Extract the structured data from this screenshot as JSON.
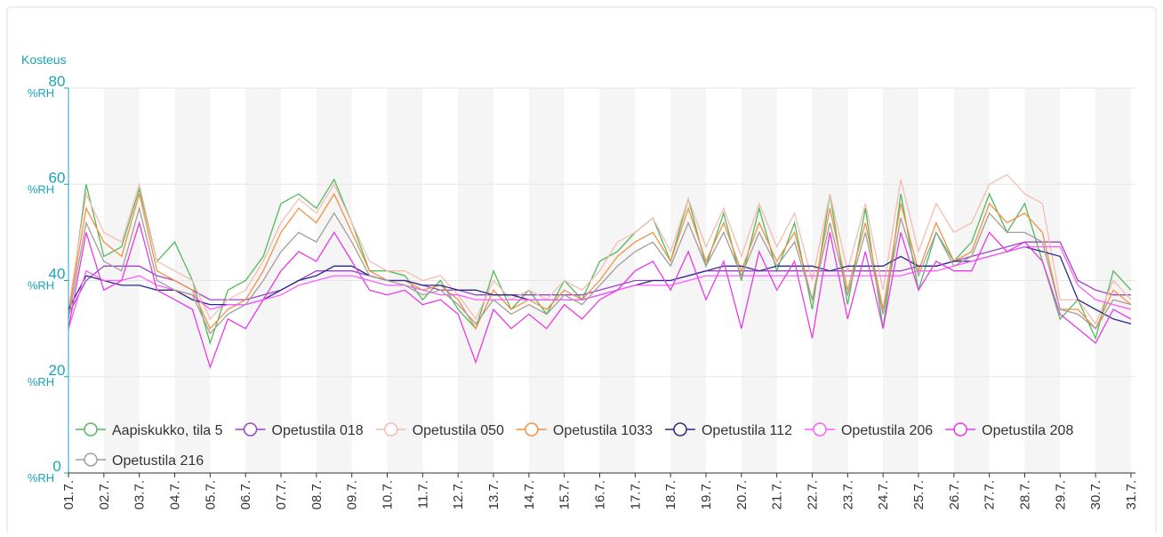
{
  "chart_data": {
    "type": "line",
    "y_axis_label": "Kosteus",
    "y_unit": "%RH",
    "x": [
      1,
      1.5,
      2,
      2.5,
      3,
      3.5,
      4,
      4.5,
      5,
      5.5,
      6,
      6.5,
      7,
      7.5,
      8,
      8.5,
      9,
      9.5,
      10,
      10.5,
      11,
      11.5,
      12,
      12.5,
      13,
      13.5,
      14,
      14.5,
      15,
      15.5,
      16,
      16.5,
      17,
      17.5,
      18,
      18.5,
      19,
      19.5,
      20,
      20.5,
      21,
      21.5,
      22,
      22.5,
      23,
      23.5,
      24,
      24.5,
      25,
      25.5,
      26,
      26.5,
      27,
      27.5,
      28,
      28.5,
      29,
      29.5,
      30,
      30.5,
      31
    ],
    "xlim": [
      1,
      31
    ],
    "xticks": [
      {
        "value": 1,
        "label": "01.7."
      },
      {
        "value": 2,
        "label": "02.7."
      },
      {
        "value": 3,
        "label": "03.7."
      },
      {
        "value": 4,
        "label": "04.7."
      },
      {
        "value": 5,
        "label": "05.7."
      },
      {
        "value": 6,
        "label": "06.7."
      },
      {
        "value": 7,
        "label": "07.7."
      },
      {
        "value": 8,
        "label": "08.7."
      },
      {
        "value": 9,
        "label": "09.7."
      },
      {
        "value": 10,
        "label": "10.7."
      },
      {
        "value": 11,
        "label": "11.7."
      },
      {
        "value": 12,
        "label": "12.7."
      },
      {
        "value": 13,
        "label": "13.7."
      },
      {
        "value": 14,
        "label": "14.7."
      },
      {
        "value": 15,
        "label": "15.7."
      },
      {
        "value": 16,
        "label": "16.7."
      },
      {
        "value": 17,
        "label": "17.7."
      },
      {
        "value": 18,
        "label": "18.7."
      },
      {
        "value": 19,
        "label": "19.7."
      },
      {
        "value": 20,
        "label": "20.7."
      },
      {
        "value": 21,
        "label": "21.7."
      },
      {
        "value": 22,
        "label": "22.7."
      },
      {
        "value": 23,
        "label": "23.7."
      },
      {
        "value": 24,
        "label": "24.7."
      },
      {
        "value": 25,
        "label": "25.7."
      },
      {
        "value": 26,
        "label": "26.7."
      },
      {
        "value": 27,
        "label": "27.7."
      },
      {
        "value": 28,
        "label": "28.7."
      },
      {
        "value": 29,
        "label": "29.7."
      },
      {
        "value": 30,
        "label": "30.7."
      },
      {
        "value": 31,
        "label": "31.7."
      }
    ],
    "ylim": [
      0,
      80
    ],
    "yticks": [
      0,
      20,
      40,
      60,
      80
    ],
    "grid": true,
    "series": [
      {
        "name": "Aapiskukko, tila 5",
        "color": "#55b85a",
        "values": [
          32,
          60,
          45,
          47,
          59,
          44,
          48,
          40,
          27,
          38,
          40,
          45,
          56,
          58,
          55,
          61,
          52,
          42,
          42,
          41,
          36,
          40,
          34,
          30,
          42,
          34,
          38,
          33,
          40,
          36,
          44,
          46,
          50,
          53,
          44,
          57,
          43,
          54,
          40,
          55,
          42,
          52,
          34,
          58,
          35,
          55,
          30,
          58,
          38,
          50,
          44,
          48,
          58,
          50,
          56,
          44,
          32,
          36,
          28,
          42,
          38
        ]
      },
      {
        "name": "Opetustila 018",
        "color": "#9b45c4",
        "values": [
          33,
          40,
          43,
          43,
          43,
          41,
          40,
          38,
          36,
          36,
          36,
          37,
          38,
          40,
          42,
          42,
          42,
          41,
          40,
          40,
          39,
          38,
          38,
          37,
          37,
          37,
          37,
          37,
          37,
          37,
          38,
          39,
          40,
          40,
          40,
          41,
          42,
          42,
          42,
          42,
          42,
          42,
          42,
          42,
          42,
          42,
          42,
          42,
          43,
          43,
          44,
          45,
          46,
          47,
          48,
          48,
          48,
          40,
          38,
          37,
          37
        ]
      },
      {
        "name": "Opetustila 050",
        "color": "#f5bcb4",
        "values": [
          34,
          58,
          50,
          48,
          60,
          44,
          42,
          40,
          32,
          36,
          38,
          44,
          52,
          57,
          54,
          60,
          52,
          44,
          42,
          42,
          40,
          41,
          37,
          32,
          40,
          36,
          38,
          36,
          40,
          38,
          42,
          48,
          50,
          53,
          46,
          57,
          47,
          55,
          45,
          56,
          47,
          54,
          40,
          58,
          42,
          56,
          38,
          61,
          46,
          56,
          50,
          52,
          60,
          62,
          58,
          56,
          36,
          36,
          31,
          40,
          36
        ]
      },
      {
        "name": "Opetustila 1033",
        "color": "#f29248",
        "values": [
          33,
          55,
          48,
          45,
          58,
          42,
          40,
          38,
          30,
          34,
          36,
          42,
          50,
          55,
          52,
          58,
          50,
          42,
          40,
          40,
          38,
          39,
          36,
          30,
          38,
          34,
          36,
          34,
          38,
          36,
          40,
          45,
          48,
          50,
          44,
          55,
          44,
          52,
          42,
          52,
          44,
          50,
          36,
          55,
          38,
          52,
          34,
          56,
          42,
          52,
          44,
          46,
          56,
          52,
          54,
          50,
          34,
          34,
          30,
          38,
          35
        ]
      },
      {
        "name": "Opetustila 112",
        "color": "#2a2a86",
        "values": [
          34,
          41,
          40,
          39,
          39,
          38,
          38,
          36,
          35,
          35,
          35,
          36,
          38,
          40,
          41,
          43,
          43,
          41,
          40,
          40,
          39,
          39,
          38,
          38,
          37,
          37,
          36,
          36,
          36,
          36,
          37,
          38,
          39,
          40,
          40,
          41,
          42,
          43,
          43,
          42,
          43,
          43,
          43,
          42,
          43,
          43,
          43,
          45,
          43,
          43,
          44,
          44,
          45,
          46,
          47,
          46,
          45,
          36,
          34,
          32,
          31
        ]
      },
      {
        "name": "Opetustila 206",
        "color": "#ff5cff",
        "values": [
          30,
          42,
          40,
          40,
          41,
          39,
          38,
          37,
          34,
          35,
          35,
          36,
          37,
          39,
          40,
          41,
          41,
          40,
          39,
          39,
          38,
          37,
          37,
          36,
          36,
          36,
          36,
          36,
          36,
          36,
          37,
          38,
          39,
          39,
          39,
          40,
          41,
          41,
          41,
          41,
          41,
          41,
          41,
          41,
          41,
          41,
          41,
          41,
          42,
          42,
          43,
          44,
          45,
          46,
          47,
          47,
          47,
          39,
          36,
          35,
          34
        ]
      },
      {
        "name": "Opetustila 208",
        "color": "#e63be6",
        "values": [
          30,
          50,
          38,
          40,
          52,
          38,
          36,
          34,
          22,
          32,
          30,
          36,
          42,
          46,
          44,
          50,
          44,
          38,
          37,
          38,
          35,
          36,
          33,
          23,
          34,
          30,
          33,
          30,
          35,
          32,
          36,
          38,
          42,
          44,
          38,
          46,
          36,
          44,
          30,
          46,
          38,
          44,
          28,
          50,
          32,
          46,
          30,
          50,
          38,
          44,
          42,
          42,
          50,
          46,
          48,
          44,
          33,
          30,
          27,
          34,
          32
        ]
      },
      {
        "name": "Opetustila 216",
        "color": "#a39d9d",
        "values": [
          32,
          52,
          44,
          42,
          55,
          40,
          38,
          37,
          29,
          33,
          35,
          40,
          46,
          50,
          48,
          54,
          48,
          41,
          40,
          39,
          37,
          38,
          35,
          31,
          36,
          33,
          35,
          33,
          37,
          35,
          39,
          43,
          46,
          48,
          43,
          52,
          43,
          50,
          41,
          50,
          43,
          48,
          36,
          52,
          37,
          50,
          33,
          53,
          41,
          50,
          43,
          45,
          54,
          50,
          50,
          48,
          34,
          33,
          30,
          36,
          35
        ]
      }
    ]
  }
}
